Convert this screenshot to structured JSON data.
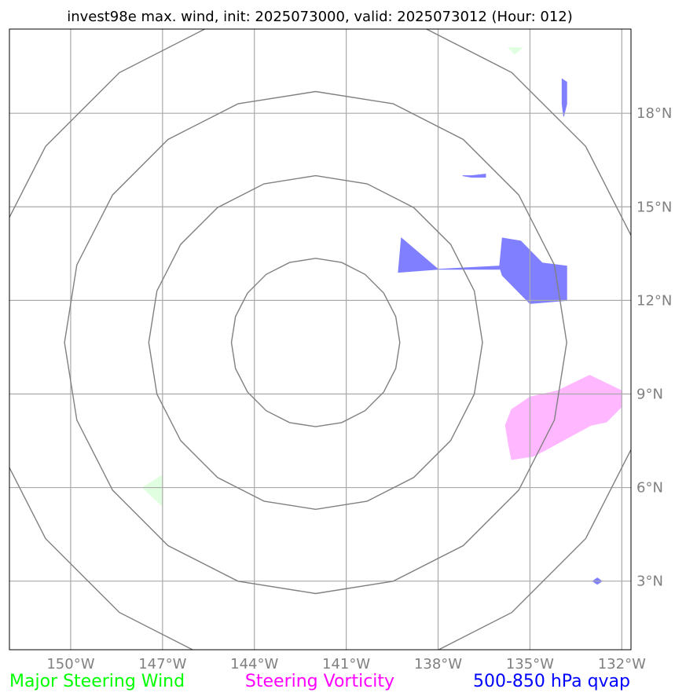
{
  "chart_data": {
    "type": "map",
    "title": "invest98e max. wind, init: 2025073000, valid: 2025073012 (Hour: 012)",
    "projection": "PlateCarree",
    "xlim": [
      -152,
      -131.7
    ],
    "ylim": [
      0.8,
      20.7
    ],
    "grid": true,
    "x_ticks": [
      {
        "value": -150,
        "label": "150°W"
      },
      {
        "value": -147,
        "label": "147°W"
      },
      {
        "value": -144,
        "label": "144°W"
      },
      {
        "value": -141,
        "label": "141°W"
      },
      {
        "value": -138,
        "label": "138°W"
      },
      {
        "value": -135,
        "label": "135°W"
      },
      {
        "value": -132,
        "label": "132°W"
      }
    ],
    "y_ticks": [
      {
        "value": 3,
        "label": "3°N"
      },
      {
        "value": 6,
        "label": "6°N"
      },
      {
        "value": 9,
        "label": "9°N"
      },
      {
        "value": 12,
        "label": "12°N"
      },
      {
        "value": 15,
        "label": "15°N"
      },
      {
        "value": 18,
        "label": "18°N"
      }
    ],
    "range_rings": {
      "center": [
        -142,
        10.65
      ],
      "radii_deg": [
        2.75,
        5.45,
        8.2,
        10.9
      ],
      "color": "#808080"
    },
    "fields": [
      {
        "name": "qvap",
        "color": "#7f7fff",
        "polygons": [
          [
            [
              -139.2,
              14.0
            ],
            [
              -138.0,
              13.0
            ],
            [
              -136.0,
              13.0
            ],
            [
              -135.9,
              14.0
            ],
            [
              -135.3,
              13.9
            ],
            [
              -134.6,
              13.2
            ],
            [
              -133.8,
              13.1
            ],
            [
              -133.8,
              12.0
            ],
            [
              -135.0,
              11.9
            ],
            [
              -135.9,
              12.8
            ],
            [
              -136.0,
              13.1
            ],
            [
              -138.0,
              13.0
            ],
            [
              -139.3,
              12.9
            ],
            [
              -139.2,
              14.0
            ]
          ],
          [
            [
              -136.45,
              16.05
            ],
            [
              -136.9,
              16.0
            ],
            [
              -137.2,
              16.0
            ],
            [
              -136.9,
              15.95
            ],
            [
              -136.45,
              15.95
            ]
          ],
          [
            [
              -133.95,
              19.1
            ],
            [
              -133.8,
              19.0
            ],
            [
              -133.8,
              18.3
            ],
            [
              -133.9,
              17.9
            ],
            [
              -133.95,
              18.3
            ]
          ],
          [
            [
              -132.8,
              3.1
            ],
            [
              -132.65,
              3.0
            ],
            [
              -132.8,
              2.9
            ],
            [
              -132.95,
              3.0
            ]
          ]
        ]
      },
      {
        "name": "vorticity",
        "color": "#ffb8ff",
        "polygons": [
          [
            [
              -135.0,
              8.9
            ],
            [
              -134.1,
              9.1
            ],
            [
              -133.05,
              9.6
            ],
            [
              -132.0,
              9.1
            ],
            [
              -132.0,
              8.6
            ],
            [
              -132.5,
              8.1
            ],
            [
              -133.0,
              8.0
            ],
            [
              -134.5,
              7.2
            ],
            [
              -134.9,
              7.0
            ],
            [
              -135.6,
              6.9
            ],
            [
              -135.7,
              7.4
            ],
            [
              -135.8,
              8.0
            ],
            [
              -135.6,
              8.5
            ],
            [
              -135.0,
              8.9
            ]
          ]
        ]
      },
      {
        "name": "wind",
        "color": "#e0ffe0",
        "polygons": [
          [
            [
              -147.0,
              6.4
            ],
            [
              -147.0,
              5.4
            ],
            [
              -147.65,
              6.0
            ]
          ],
          [
            [
              -135.7,
              20.1
            ],
            [
              -135.25,
              20.1
            ],
            [
              -135.5,
              19.9
            ]
          ]
        ]
      }
    ],
    "legend": [
      {
        "label": "Major Steering Wind",
        "color": "#00ff00"
      },
      {
        "label": "Steering Vorticity",
        "color": "#ff00ff"
      },
      {
        "label": "500-850 hPa qvap",
        "color": "#0000ff"
      }
    ]
  }
}
